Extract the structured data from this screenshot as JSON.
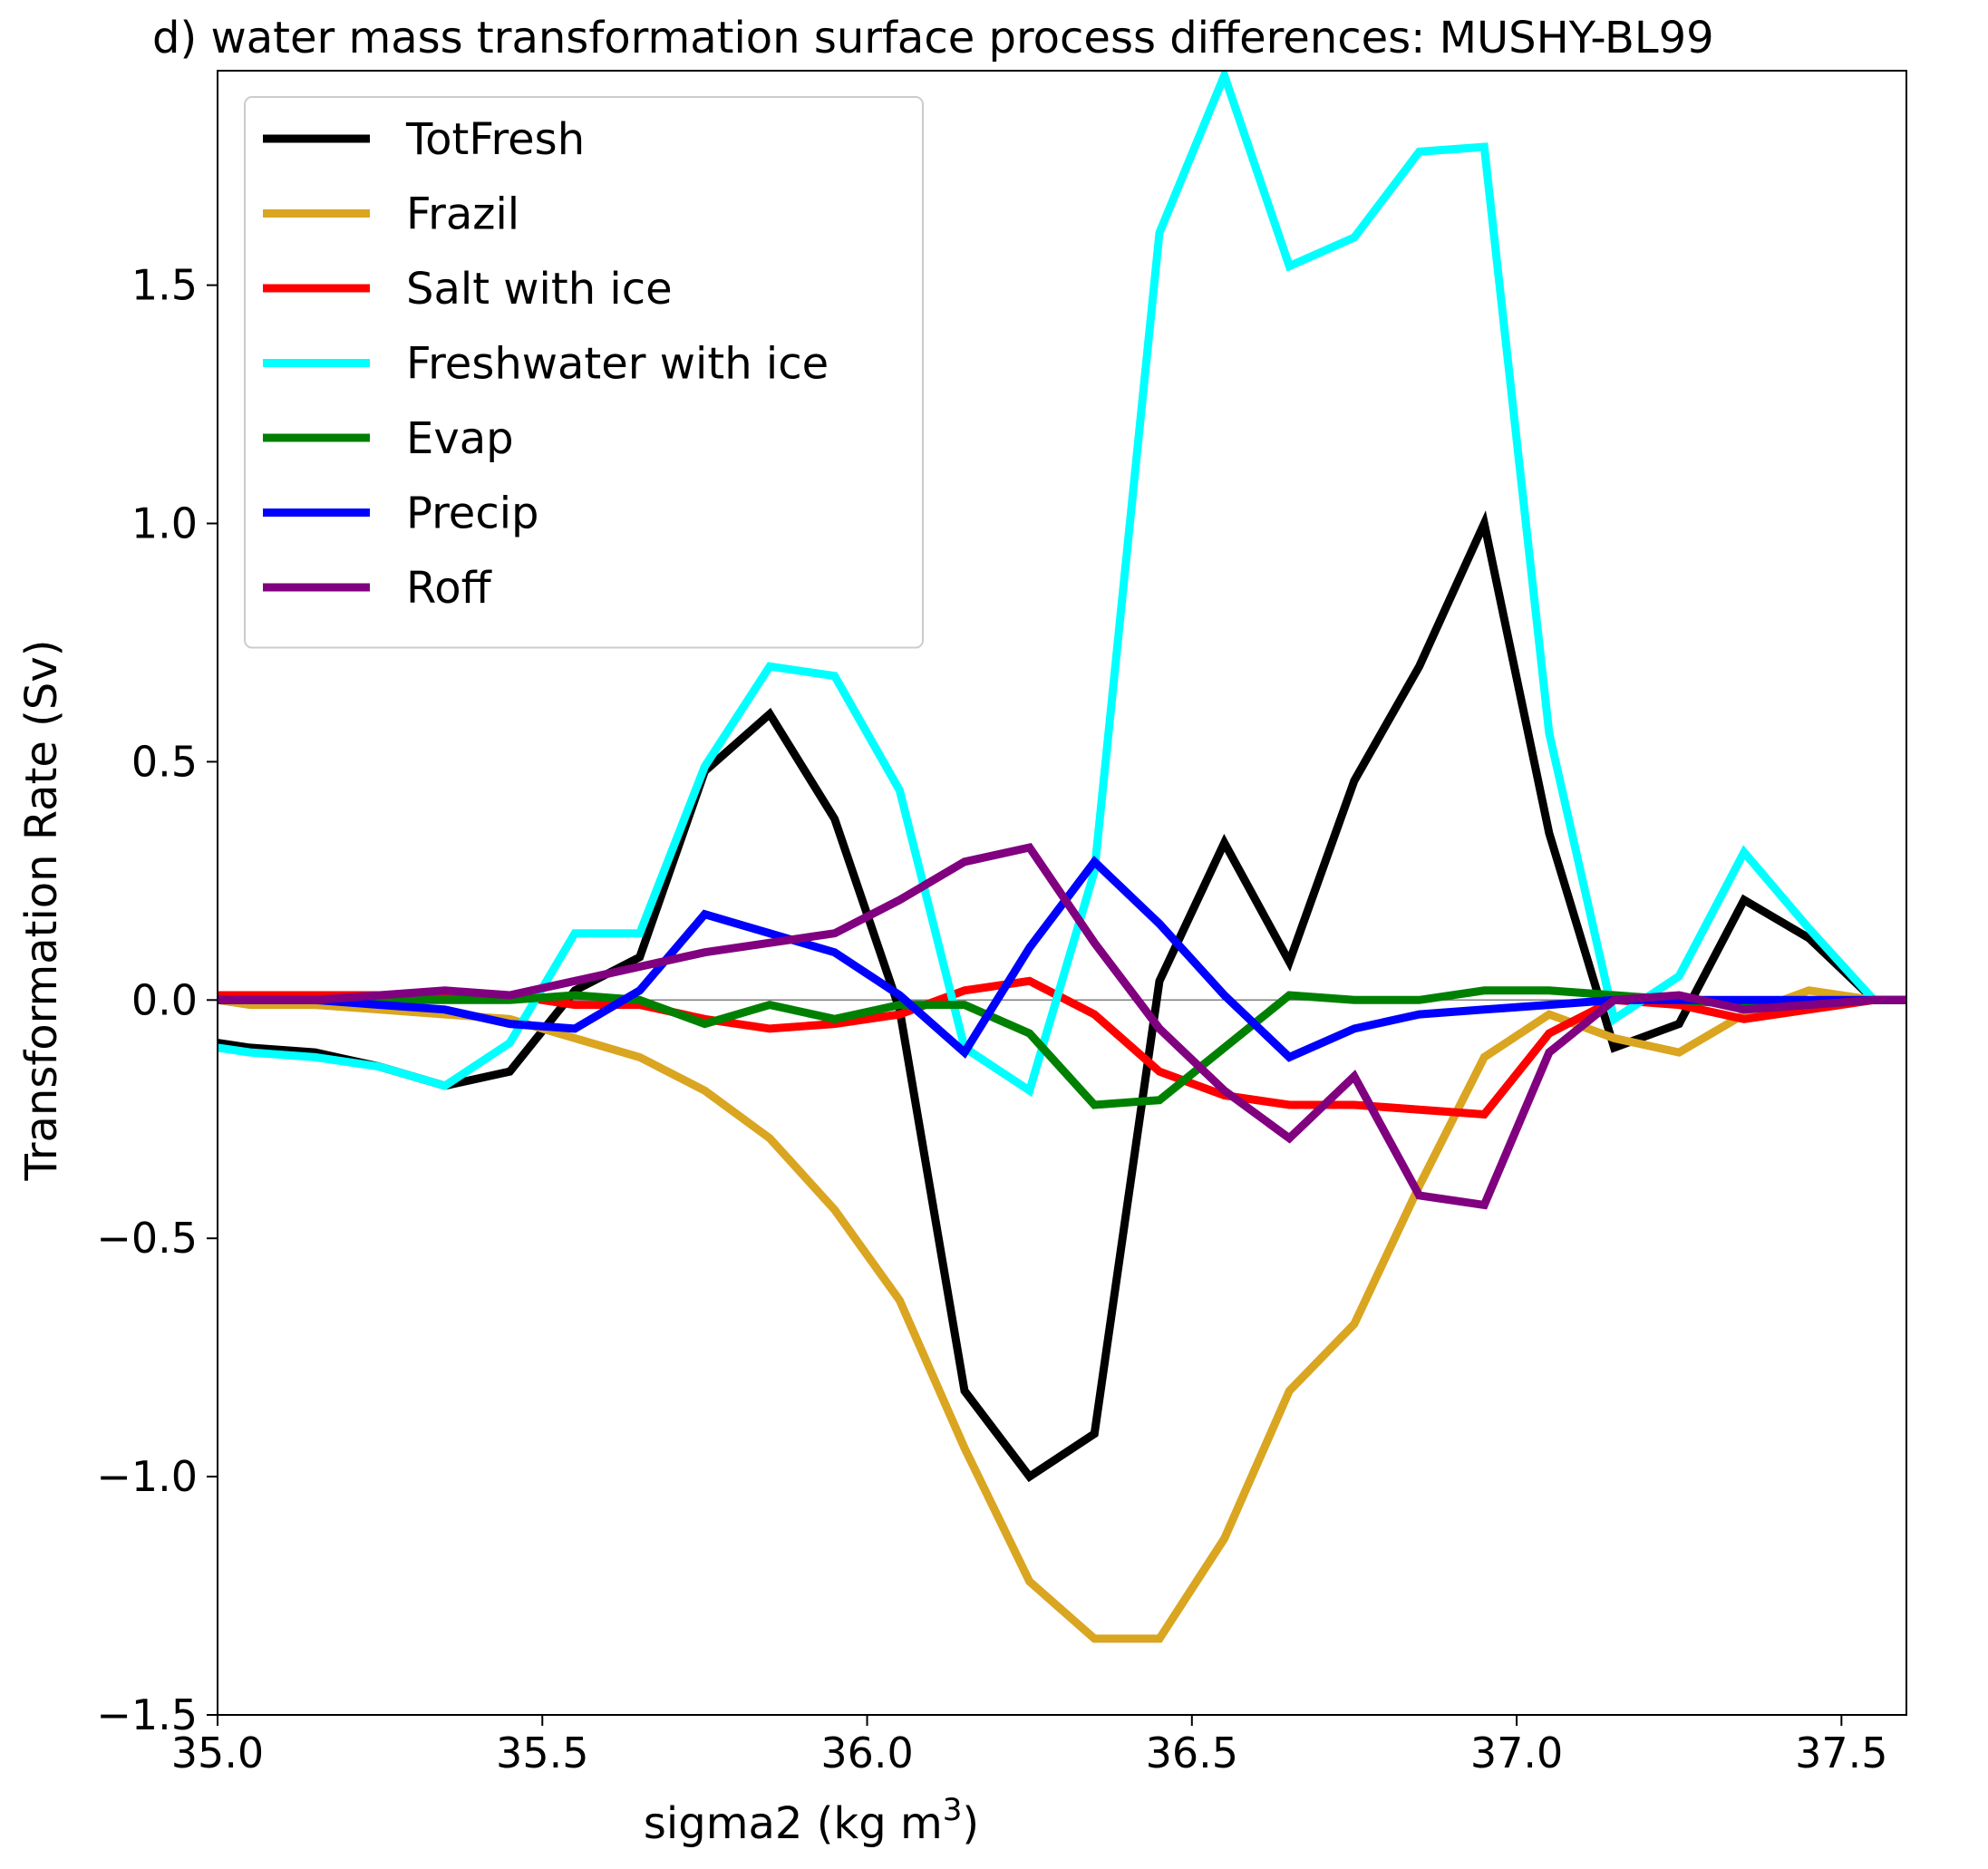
{
  "chart_data": {
    "type": "line",
    "title": "d) water mass transformation surface process differences: MUSHY-BL99",
    "xlabel": "sigma2 (kg m",
    "xlabel_sup": "3",
    "xlabel_close": ")",
    "ylabel": "Transformation Rate (Sv)",
    "xlim": [
      35.0,
      37.6
    ],
    "ylim": [
      -1.5,
      1.95
    ],
    "xticks": [
      35.0,
      35.5,
      36.0,
      36.5,
      37.0,
      37.5
    ],
    "xtick_labels": [
      "35.0",
      "35.5",
      "36.0",
      "36.5",
      "37.0",
      "37.5"
    ],
    "yticks": [
      -1.5,
      -1.0,
      -0.5,
      0.0,
      0.5,
      1.0,
      1.5
    ],
    "ytick_labels": [
      "−1.5",
      "−1.0",
      "−0.5",
      "0.0",
      "0.5",
      "1.0",
      "1.5"
    ],
    "zero_line": true,
    "grid": false,
    "legend_position": "upper-left",
    "x": [
      35.0,
      35.05,
      35.15,
      35.25,
      35.35,
      35.45,
      35.55,
      35.65,
      35.75,
      35.85,
      35.95,
      36.05,
      36.15,
      36.25,
      36.35,
      36.45,
      36.55,
      36.65,
      36.75,
      36.85,
      36.95,
      37.05,
      37.15,
      37.25,
      37.35,
      37.45,
      37.55,
      37.6
    ],
    "series": [
      {
        "name": "TotFresh",
        "color": "#000000",
        "values": [
          -0.09,
          -0.1,
          -0.11,
          -0.14,
          -0.18,
          -0.15,
          0.02,
          0.09,
          0.48,
          0.6,
          0.38,
          -0.02,
          -0.82,
          -1.0,
          -0.91,
          0.04,
          0.33,
          0.08,
          0.46,
          0.7,
          1.0,
          0.35,
          -0.1,
          -0.05,
          0.21,
          0.13,
          0.0,
          0.0
        ]
      },
      {
        "name": "Frazil",
        "color": "#daa520",
        "values": [
          0.0,
          -0.01,
          -0.01,
          -0.02,
          -0.03,
          -0.04,
          -0.08,
          -0.12,
          -0.19,
          -0.29,
          -0.44,
          -0.63,
          -0.94,
          -1.22,
          -1.34,
          -1.34,
          -1.13,
          -0.82,
          -0.68,
          -0.39,
          -0.12,
          -0.03,
          -0.08,
          -0.11,
          -0.03,
          0.02,
          0.0,
          0.0
        ]
      },
      {
        "name": "Salt with ice",
        "color": "#ff0000",
        "values": [
          0.01,
          0.01,
          0.01,
          0.01,
          0.01,
          0.01,
          -0.01,
          -0.01,
          -0.04,
          -0.06,
          -0.05,
          -0.03,
          0.02,
          0.04,
          -0.03,
          -0.15,
          -0.2,
          -0.22,
          -0.22,
          -0.23,
          -0.24,
          -0.07,
          0.0,
          -0.01,
          -0.04,
          -0.02,
          0.0,
          0.0
        ]
      },
      {
        "name": "Freshwater with ice",
        "color": "#00ffff",
        "values": [
          -0.1,
          -0.11,
          -0.12,
          -0.14,
          -0.18,
          -0.09,
          0.14,
          0.14,
          0.49,
          0.7,
          0.68,
          0.44,
          -0.1,
          -0.19,
          0.27,
          1.61,
          1.94,
          1.54,
          1.6,
          1.78,
          1.79,
          0.56,
          -0.04,
          0.05,
          0.31,
          0.15,
          0.0,
          0.0
        ]
      },
      {
        "name": "Evap",
        "color": "#008000",
        "values": [
          0.0,
          0.0,
          0.0,
          0.0,
          0.0,
          0.0,
          0.01,
          0.0,
          -0.05,
          -0.01,
          -0.04,
          -0.01,
          -0.01,
          -0.07,
          -0.22,
          -0.21,
          -0.1,
          0.01,
          0.0,
          0.0,
          0.02,
          0.02,
          0.01,
          0.0,
          -0.01,
          -0.01,
          0.0,
          0.0
        ]
      },
      {
        "name": "Precip",
        "color": "#0000ff",
        "values": [
          0.0,
          0.0,
          0.0,
          -0.01,
          -0.02,
          -0.05,
          -0.06,
          0.02,
          0.18,
          0.14,
          0.1,
          0.01,
          -0.11,
          0.11,
          0.29,
          0.16,
          0.01,
          -0.12,
          -0.06,
          -0.03,
          -0.02,
          -0.01,
          0.0,
          0.0,
          0.0,
          0.0,
          0.0,
          0.0
        ]
      },
      {
        "name": "Roff",
        "color": "#800080",
        "values": [
          0.0,
          0.0,
          0.0,
          0.01,
          0.02,
          0.01,
          0.04,
          0.07,
          0.1,
          0.12,
          0.14,
          0.21,
          0.29,
          0.32,
          0.12,
          -0.06,
          -0.19,
          -0.29,
          -0.16,
          -0.41,
          -0.43,
          -0.11,
          0.0,
          0.01,
          -0.02,
          -0.01,
          0.0,
          0.0
        ]
      }
    ]
  }
}
